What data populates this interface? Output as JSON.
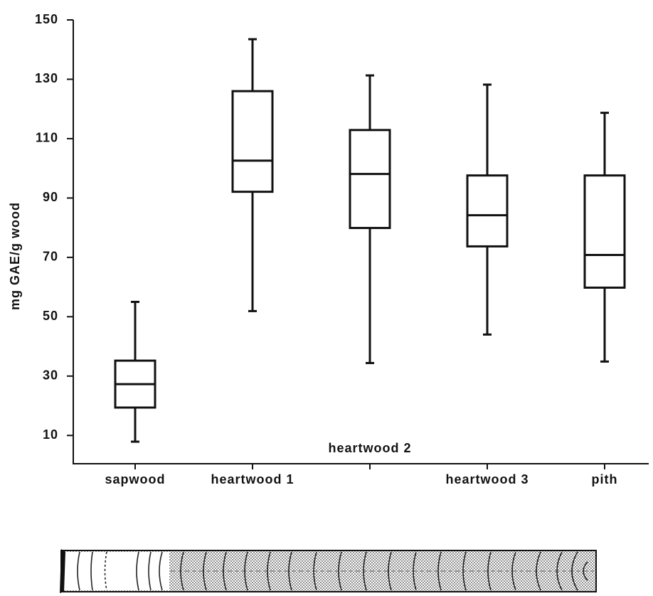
{
  "chart_data": {
    "type": "box",
    "y_label": "mg GAE/g wood",
    "categories": [
      "sapwood",
      "heartwood 1",
      "heartwood 2",
      "heartwood 3",
      "pith"
    ],
    "boxes": [
      {
        "min": 7.9,
        "q1": 19.4,
        "median": 27.3,
        "q3": 35.2,
        "max": 55.0
      },
      {
        "min": 51.9,
        "q1": 92.1,
        "median": 102.6,
        "q3": 126.0,
        "max": 143.5
      },
      {
        "min": 34.4,
        "q1": 79.9,
        "median": 98.1,
        "q3": 112.9,
        "max": 131.3
      },
      {
        "min": 44.0,
        "q1": 73.7,
        "median": 84.2,
        "q3": 97.6,
        "max": 128.2
      },
      {
        "min": 34.9,
        "q1": 59.8,
        "median": 70.8,
        "q3": 97.6,
        "max": 118.7
      }
    ],
    "color": "#111111",
    "ylim": [
      0,
      150
    ],
    "yticks": [
      10,
      30,
      50,
      70,
      90,
      110,
      130,
      150
    ]
  }
}
